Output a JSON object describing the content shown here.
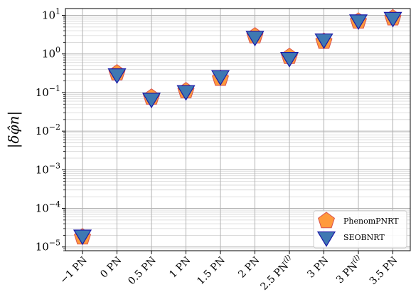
{
  "chart_data": {
    "type": "scatter",
    "ylabel": "|δφ̂n|",
    "yscale": "log",
    "ylim": [
      8e-06,
      15
    ],
    "y_ticks": [
      {
        "value": 1e-05,
        "mantissa": "10",
        "exp": "−5"
      },
      {
        "value": 0.0001,
        "mantissa": "10",
        "exp": "−4"
      },
      {
        "value": 0.001,
        "mantissa": "10",
        "exp": "−3"
      },
      {
        "value": 0.01,
        "mantissa": "10",
        "exp": "−2"
      },
      {
        "value": 0.1,
        "mantissa": "10",
        "exp": "−1"
      },
      {
        "value": 1,
        "mantissa": "10",
        "exp": "0"
      },
      {
        "value": 10,
        "mantissa": "10",
        "exp": "1"
      }
    ],
    "categories": [
      {
        "label": "−1 PN",
        "sup": ""
      },
      {
        "label": "0 PN",
        "sup": ""
      },
      {
        "label": "0.5 PN",
        "sup": ""
      },
      {
        "label": "1 PN",
        "sup": ""
      },
      {
        "label": "1.5 PN",
        "sup": ""
      },
      {
        "label": "2 PN",
        "sup": ""
      },
      {
        "label": "2.5 PN",
        "sup": "(l)"
      },
      {
        "label": "3 PN",
        "sup": ""
      },
      {
        "label": "3 PN",
        "sup": "(l)"
      },
      {
        "label": "3.5 PN",
        "sup": ""
      }
    ],
    "series": [
      {
        "name": "PhenomPNRT",
        "marker": "pentagon",
        "color": "#ff9a3c",
        "edge": "#d9534f",
        "values": [
          1.8e-05,
          0.32,
          0.075,
          0.11,
          0.23,
          2.9,
          0.85,
          2.1,
          7.0,
          8.5
        ]
      },
      {
        "name": "SEOBNRT",
        "marker": "triangle-down",
        "color": "#3e78b2",
        "edge": "#1a1aa8",
        "values": [
          2e-05,
          0.3,
          0.07,
          0.11,
          0.27,
          2.8,
          0.8,
          2.4,
          7.5,
          8.7
        ]
      }
    ],
    "grid": true,
    "legend_position": "bottom-right"
  }
}
